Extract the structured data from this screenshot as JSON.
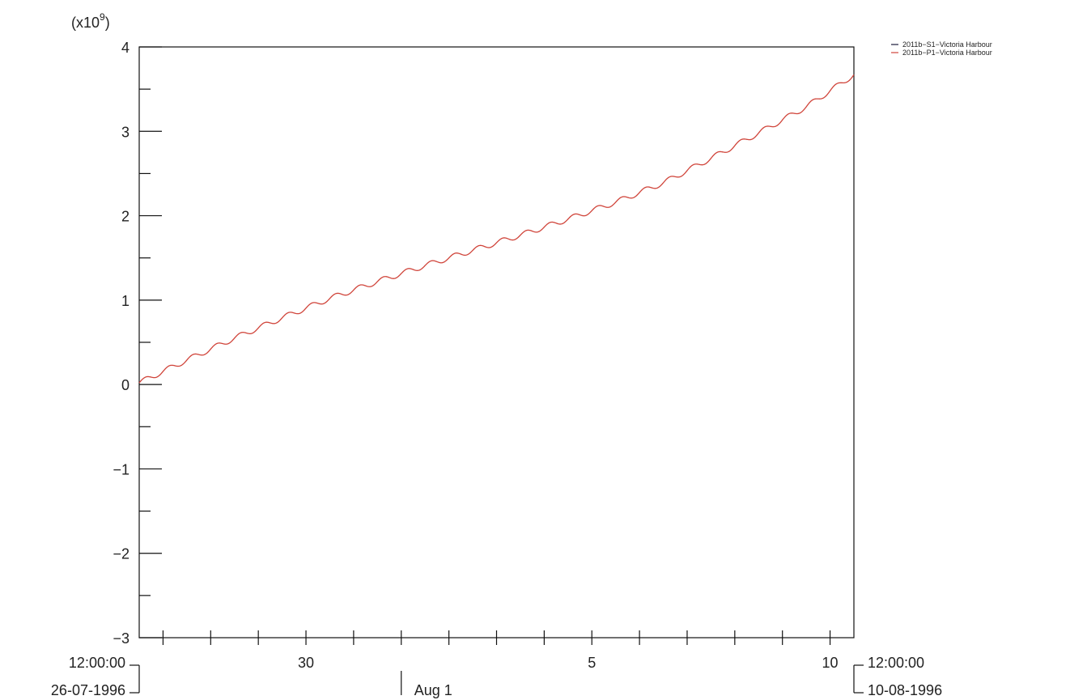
{
  "chart_data": {
    "type": "line",
    "title": "",
    "xlabel": "",
    "ylabel": "",
    "y_multiplier_label": "(x10",
    "y_multiplier_exp": "9",
    "y_multiplier_close": ")",
    "ylim": [
      -3,
      4
    ],
    "y_ticks": [
      -3,
      -2,
      -1,
      0,
      1,
      2,
      3,
      4
    ],
    "y_tick_labels": [
      "−3",
      "−2",
      "−1",
      "0",
      "1",
      "2",
      "3",
      "4"
    ],
    "xlim": [
      "1996-07-26 12:00",
      "1996-08-10 12:00"
    ],
    "x_minor_ticks": [
      "1996-07-27",
      "1996-07-28",
      "1996-07-29",
      "1996-07-30",
      "1996-07-31",
      "1996-08-01",
      "1996-08-02",
      "1996-08-03",
      "1996-08-04",
      "1996-08-05",
      "1996-08-06",
      "1996-08-07",
      "1996-08-08",
      "1996-08-09",
      "1996-08-10"
    ],
    "x_labels": [
      {
        "date": "1996-07-30",
        "label": "30"
      },
      {
        "date": "1996-08-05",
        "label": "5"
      },
      {
        "date": "1996-08-10",
        "label": "10"
      }
    ],
    "month_marker": {
      "date": "1996-08-01",
      "label": "Aug 1"
    },
    "start_time": "12:00:00",
    "start_date": "26-07-1996",
    "end_time": "12:00:00",
    "end_date": "10-08-1996",
    "grid": false,
    "legend_position": "top-right",
    "series": [
      {
        "name": "2011b−S1−Victoria Harbour",
        "color": "#1a1a3a",
        "x": [],
        "y": []
      },
      {
        "name": "2011b−P1−Victoria Harbour",
        "color": "#d0443a",
        "x": [
          "1996-07-26 12:00",
          "1996-07-27 12:00",
          "1996-07-28 12:00",
          "1996-07-29 12:00",
          "1996-07-30 12:00",
          "1996-07-31 12:00",
          "1996-08-01 12:00",
          "1996-08-02 12:00",
          "1996-08-03 12:00",
          "1996-08-04 12:00",
          "1996-08-05 12:00",
          "1996-08-06 12:00",
          "1996-08-07 12:00",
          "1996-08-08 12:00",
          "1996-08-09 12:00",
          "1996-08-10 12:00"
        ],
        "y": [
          0.02,
          0.29,
          0.55,
          0.79,
          1.02,
          1.22,
          1.41,
          1.59,
          1.77,
          1.96,
          2.16,
          2.39,
          2.68,
          2.98,
          3.29,
          3.67
        ]
      }
    ]
  }
}
